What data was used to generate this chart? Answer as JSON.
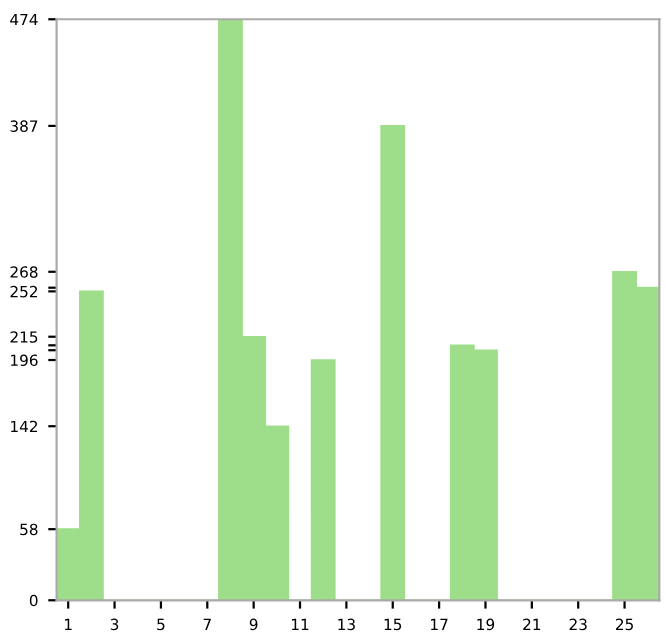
{
  "chart_data": {
    "type": "bar",
    "categories": [
      "1",
      null,
      "3",
      null,
      "5",
      null,
      "7",
      null,
      "9",
      null,
      "11",
      null,
      "13",
      null,
      "15",
      null,
      "17",
      null,
      "19",
      null,
      "21",
      null,
      "23",
      null,
      "25",
      null
    ],
    "values": [
      58,
      252,
      0,
      0,
      0,
      0,
      0,
      474,
      215,
      142,
      0,
      196,
      0,
      0,
      387,
      0,
      0,
      208,
      204,
      0,
      0,
      0,
      0,
      0,
      268,
      255
    ],
    "color": "#9ede8a",
    "ylim": [
      0,
      474
    ],
    "yticks": [
      0,
      58,
      142,
      196,
      {
        "value": 204,
        "label": null
      },
      {
        "value": 208,
        "label": null
      },
      215,
      252,
      {
        "value": 255,
        "label": null
      },
      268,
      387,
      474
    ],
    "grid": false
  }
}
